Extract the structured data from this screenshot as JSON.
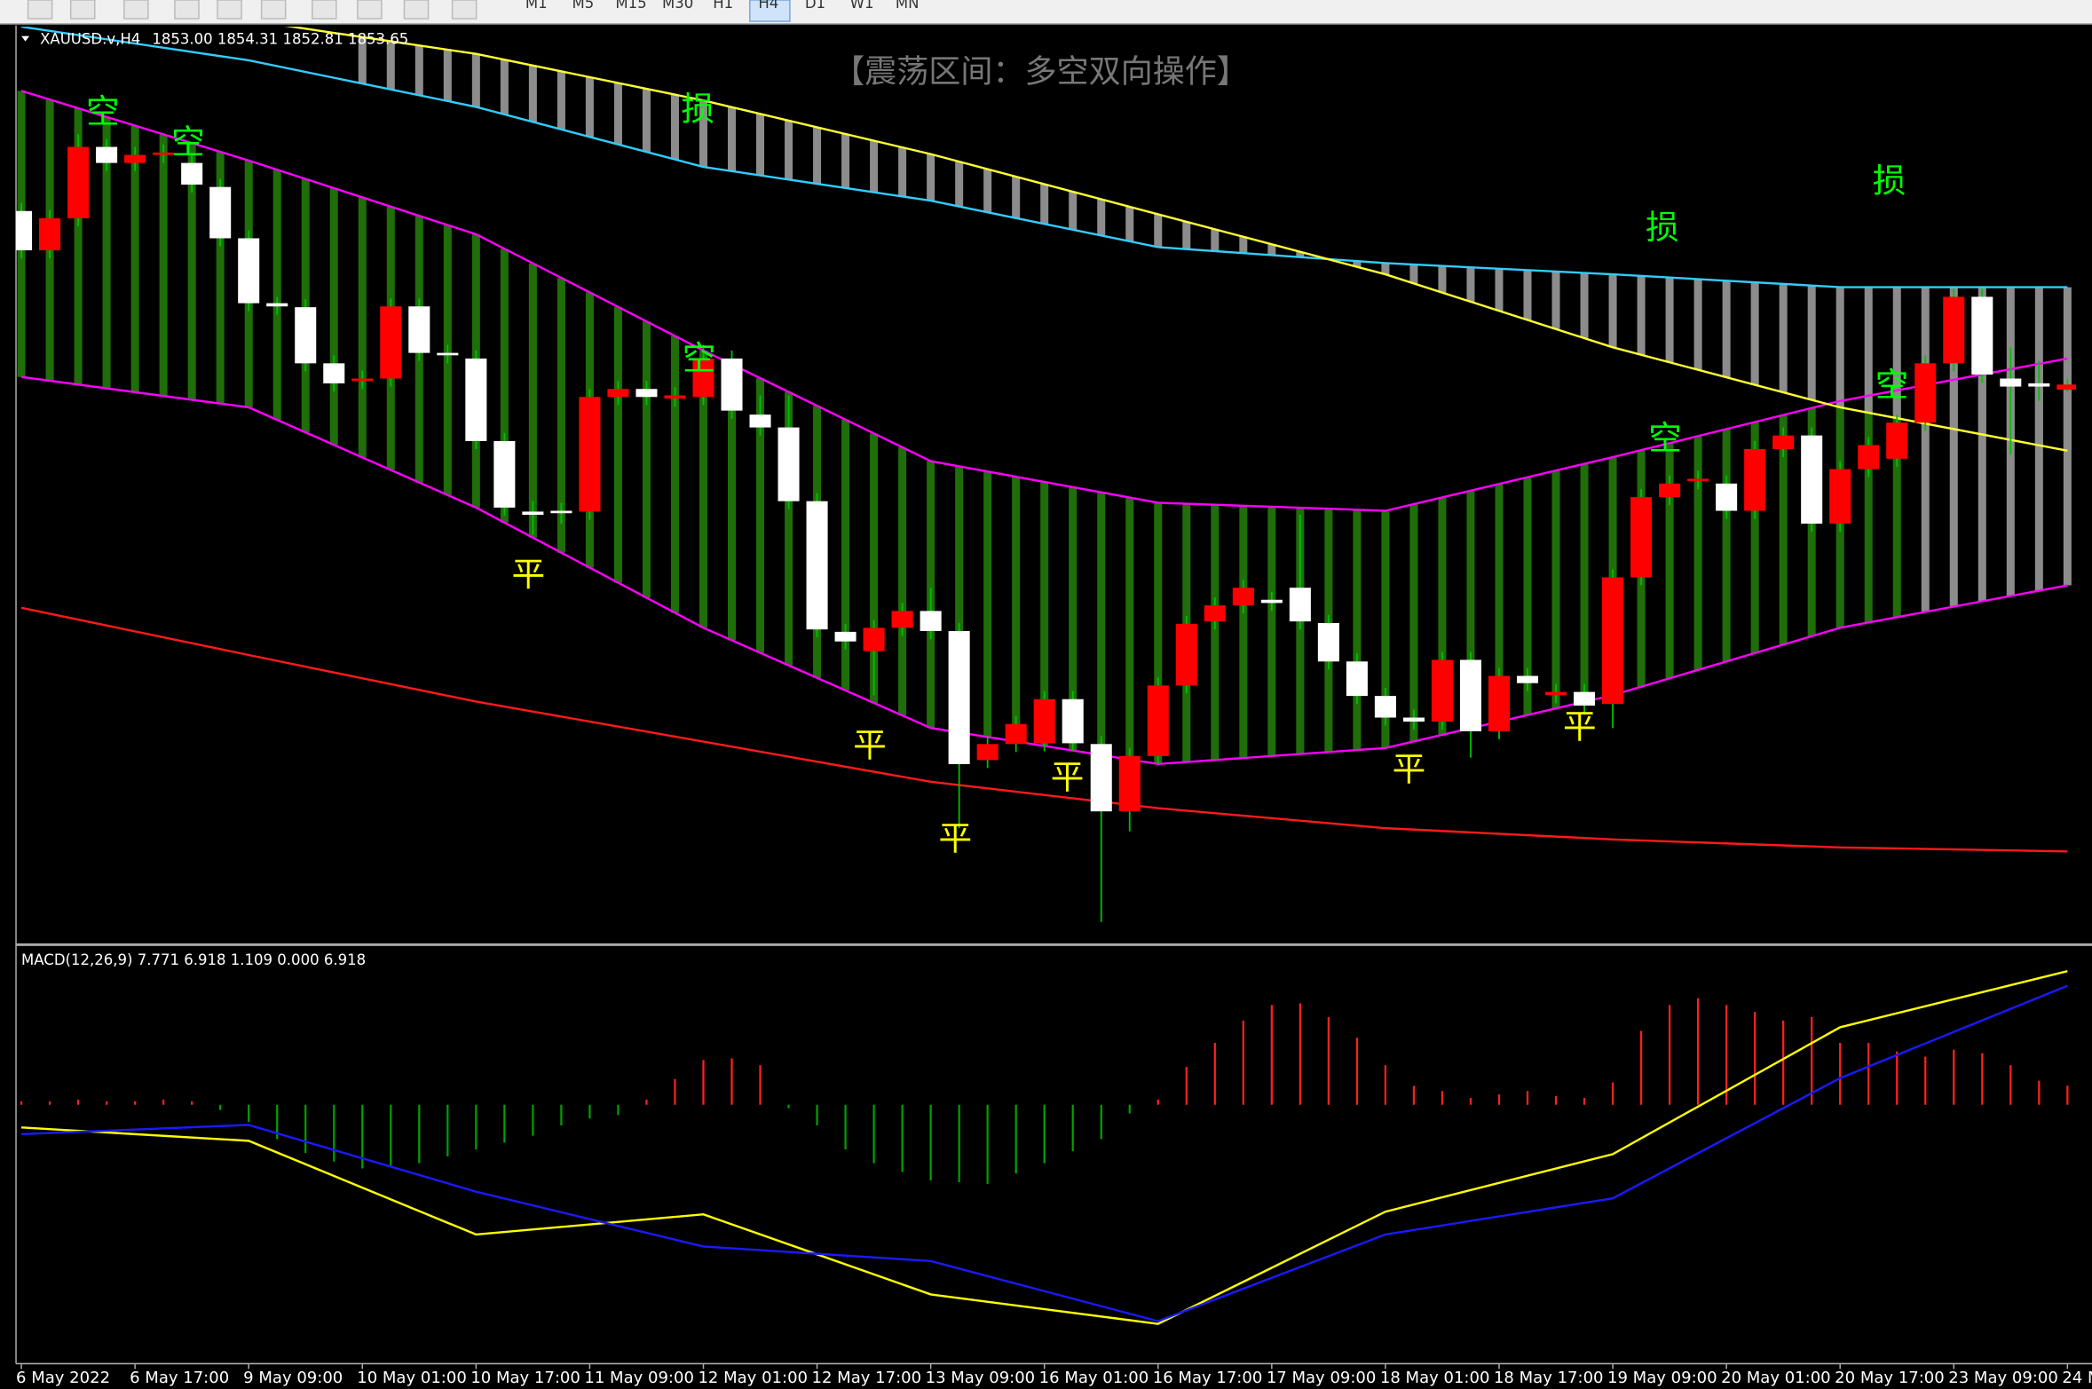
{
  "toolbar": {
    "periods": [
      "M1",
      "M5",
      "M15",
      "M30",
      "H1",
      "H4",
      "D1",
      "W1",
      "MN"
    ],
    "active": "H4"
  },
  "chart_data": [
    {
      "type": "candlestick",
      "title": "XAUUSD.v,H4",
      "subtitle": "1853.00 1854.31 1852.81 1853.65",
      "annotation_title": "【震荡区间：多空双向操作】",
      "categories": [
        "6 May 2022",
        null,
        null,
        null,
        "6 May 17:00",
        null,
        null,
        null,
        "9 May 09:00",
        null,
        null,
        null,
        "10 May 01:00",
        null,
        null,
        null,
        "10 May 17:00",
        null,
        null,
        null,
        "11 May 09:00",
        null,
        null,
        null,
        "12 May 01:00",
        null,
        null,
        null,
        "12 May 17:00",
        null,
        null,
        null,
        "13 May 09:00",
        null,
        null,
        null,
        "16 May 01:00",
        null,
        null,
        null,
        "16 May 17:00",
        null,
        null,
        null,
        "17 May 09:00",
        null,
        null,
        null,
        "18 May 01:00",
        null,
        null,
        null,
        "18 May 17:00",
        null,
        null,
        null,
        "19 May 09:00",
        null,
        null,
        null,
        "20 May 01:00",
        null,
        null,
        null,
        "20 May 17:00",
        null,
        null,
        null,
        "23 May 09:00",
        null,
        null,
        null,
        "24 M"
      ],
      "open": [
        1875.3,
        1870.4,
        1874.4,
        1883.3,
        1881.3,
        1882.3,
        1881.3,
        1878.3,
        1871.9,
        1863.8,
        1863.3,
        1856.3,
        1854.1,
        1854.4,
        1863.4,
        1857.6,
        1856.9,
        1846.6,
        1837.8,
        1837.9,
        1837.8,
        1852.1,
        1853.1,
        1851.9,
        1852.1,
        1856.9,
        1849.9,
        1848.3,
        1839.1,
        1822.8,
        1820.4,
        1823.3,
        1825.4,
        1822.9,
        1806.8,
        1808.8,
        1808.9,
        1814.4,
        1808.8,
        1800.4,
        1807.3,
        1816.1,
        1824.1,
        1826.1,
        1826.8,
        1828.3,
        1823.9,
        1819.1,
        1814.8,
        1812.1,
        1811.6,
        1819.3,
        1810.4,
        1817.3,
        1814.9,
        1815.3,
        1813.8,
        1829.6,
        1839.6,
        1841.6,
        1841.3,
        1837.9,
        1845.6,
        1847.3,
        1836.3,
        1843.1,
        1844.4,
        1848.9,
        1856.3,
        1864.6,
        1854.4,
        1853.8,
        1853.0
      ],
      "high": [
        1876.3,
        1875.4,
        1884.9,
        1884.3,
        1883.3,
        1883.6,
        1882.3,
        1879.3,
        1872.9,
        1864.6,
        1864.3,
        1857.3,
        1855.4,
        1864.4,
        1864.4,
        1858.6,
        1857.9,
        1847.6,
        1839.1,
        1838.9,
        1853.1,
        1854.1,
        1854.1,
        1853.3,
        1858.6,
        1857.9,
        1852.3,
        1852.3,
        1840.1,
        1823.8,
        1824.3,
        1826.4,
        1828.3,
        1823.9,
        1809.8,
        1812.3,
        1815.4,
        1815.4,
        1809.8,
        1808.3,
        1817.1,
        1824.8,
        1827.1,
        1829.3,
        1827.8,
        1837.4,
        1824.9,
        1820.1,
        1815.8,
        1813.1,
        1820.3,
        1820.3,
        1818.3,
        1818.3,
        1816.3,
        1816.3,
        1830.6,
        1840.6,
        1842.3,
        1842.9,
        1842.3,
        1846.6,
        1848.3,
        1848.3,
        1844.1,
        1847.1,
        1849.9,
        1857.3,
        1865.6,
        1865.6,
        1858.3,
        1856.6,
        1854.31
      ],
      "low": [
        1869.4,
        1869.4,
        1873.4,
        1880.3,
        1880.3,
        1881.3,
        1877.6,
        1870.9,
        1862.8,
        1862.4,
        1855.3,
        1852.8,
        1853.1,
        1853.4,
        1856.6,
        1856.3,
        1845.6,
        1837.3,
        1834.9,
        1836.3,
        1836.8,
        1851.1,
        1851.1,
        1850.9,
        1851.1,
        1849.4,
        1847.3,
        1838.1,
        1822.1,
        1820.6,
        1814.9,
        1822.3,
        1821.9,
        1798.3,
        1805.8,
        1807.8,
        1807.9,
        1807.9,
        1786.6,
        1797.9,
        1806.3,
        1815.1,
        1823.1,
        1825.1,
        1825.4,
        1823.1,
        1818.1,
        1813.8,
        1811.1,
        1810.6,
        1810.6,
        1807.1,
        1809.4,
        1815.4,
        1813.9,
        1812.6,
        1810.8,
        1828.6,
        1838.6,
        1840.6,
        1836.9,
        1836.9,
        1844.6,
        1835.3,
        1835.3,
        1842.1,
        1843.4,
        1847.9,
        1855.3,
        1853.9,
        1844.9,
        1851.6,
        1852.81
      ],
      "close": [
        1870.4,
        1874.4,
        1883.3,
        1881.3,
        1882.3,
        1882.6,
        1878.6,
        1871.9,
        1863.8,
        1863.4,
        1856.3,
        1853.8,
        1854.4,
        1863.4,
        1857.6,
        1857.3,
        1846.6,
        1838.3,
        1837.4,
        1837.6,
        1852.1,
        1853.1,
        1852.1,
        1852.3,
        1856.9,
        1850.4,
        1848.3,
        1839.1,
        1823.1,
        1821.6,
        1823.3,
        1825.4,
        1822.9,
        1806.3,
        1808.8,
        1811.3,
        1814.4,
        1808.9,
        1800.4,
        1807.3,
        1816.1,
        1823.8,
        1826.1,
        1828.3,
        1826.4,
        1824.1,
        1819.1,
        1814.8,
        1812.1,
        1811.6,
        1819.3,
        1810.4,
        1817.3,
        1816.4,
        1815.3,
        1813.6,
        1829.6,
        1839.6,
        1841.3,
        1841.9,
        1837.9,
        1845.6,
        1847.3,
        1836.3,
        1843.1,
        1846.1,
        1848.9,
        1856.3,
        1864.6,
        1854.9,
        1853.4,
        1853.4,
        1853.65
      ],
      "up_color": "#ff0000",
      "down_color": "#ffffff",
      "wick_color": "#00c000",
      "stripe_colors": [
        "#1f6e0a",
        "#8c8c8c"
      ],
      "ylim": [
        1784.1,
        1898.3
      ],
      "series": [
        {
          "color": "#ff00ff",
          "x": [
            0,
            8,
            16,
            24,
            32,
            40,
            48,
            56,
            64,
            72
          ],
          "values": [
            1890.3,
            1881.6,
            1872.4,
            1857.9,
            1844.1,
            1838.9,
            1837.9,
            1844.6,
            1851.6,
            1856.9
          ]
        },
        {
          "color": "#ff00ff",
          "x": [
            0,
            8,
            16,
            24,
            32,
            40,
            48,
            56,
            64,
            72
          ],
          "values": [
            1854.6,
            1850.8,
            1838.3,
            1823.3,
            1810.8,
            1806.3,
            1808.3,
            1814.9,
            1823.3,
            1828.6
          ]
        },
        {
          "color": "#33ccff",
          "x": [
            0,
            8,
            16,
            24,
            32,
            40,
            48,
            56,
            64,
            72
          ],
          "values": [
            1898.3,
            1894.1,
            1888.3,
            1880.8,
            1876.6,
            1870.8,
            1868.8,
            1867.4,
            1865.8,
            1865.8
          ]
        },
        {
          "color": "#ffff33",
          "x": [
            8,
            16,
            24,
            32,
            40,
            48,
            56,
            64,
            72
          ],
          "values": [
            1899.1,
            1894.9,
            1889.1,
            1882.4,
            1874.9,
            1867.4,
            1858.3,
            1850.8,
            1845.4
          ]
        },
        {
          "color": "#ff1a1a",
          "x": [
            0,
            8,
            16,
            24,
            32,
            40,
            48,
            56,
            64,
            72
          ],
          "values": [
            1825.8,
            1819.9,
            1814.1,
            1809.1,
            1804.1,
            1800.8,
            1798.3,
            1796.9,
            1795.9,
            1795.4
          ]
        }
      ],
      "annotations": [
        {
          "text": "空",
          "color": "#00ff00"
        },
        {
          "text": "空",
          "color": "#00ff00"
        },
        {
          "text": "平",
          "color": "#ffff00"
        },
        {
          "text": "损",
          "color": "#00ff00"
        },
        {
          "text": "空",
          "color": "#00ff00"
        },
        {
          "text": "平",
          "color": "#ffff00"
        },
        {
          "text": "平",
          "color": "#ffff00"
        },
        {
          "text": "平",
          "color": "#ffff00"
        },
        {
          "text": "平",
          "color": "#ffff00"
        },
        {
          "text": "平",
          "color": "#ffff00"
        },
        {
          "text": "损",
          "color": "#00ff00"
        },
        {
          "text": "空",
          "color": "#00ff00"
        },
        {
          "text": "损",
          "color": "#00ff00"
        },
        {
          "text": "空",
          "color": "#00ff00"
        }
      ]
    },
    {
      "type": "macd",
      "title": "MACD(12,26,9) 7.771 6.918 1.109 0.000 6.918",
      "ylim": [
        -14.9,
        9.0
      ],
      "pos_color": "#ff2020",
      "neg_color": "#00a000",
      "histogram": [
        0.2,
        0.2,
        0.3,
        0.2,
        0.2,
        0.3,
        0.2,
        -0.3,
        -1.0,
        -2.0,
        -2.8,
        -3.3,
        -3.7,
        -3.6,
        -3.4,
        -3.0,
        -2.6,
        -2.2,
        -1.8,
        -1.2,
        -0.8,
        -0.6,
        0.3,
        1.5,
        2.6,
        2.7,
        2.3,
        -0.2,
        -1.2,
        -2.6,
        -3.4,
        -3.9,
        -4.4,
        -4.5,
        -4.6,
        -4.0,
        -3.4,
        -2.7,
        -2.0,
        -0.5,
        0.3,
        2.2,
        3.6,
        4.9,
        5.8,
        5.9,
        5.1,
        3.9,
        2.3,
        1.1,
        0.8,
        0.4,
        0.6,
        0.8,
        0.5,
        0.4,
        1.3,
        4.3,
        5.8,
        6.2,
        5.8,
        5.4,
        4.9,
        5.1,
        3.6,
        3.6,
        3.1,
        2.8,
        3.2,
        3.0,
        2.3,
        1.4,
        1.109
      ],
      "series": [
        {
          "color": "#ffff00",
          "x": [
            0,
            8,
            16,
            24,
            32,
            40,
            48,
            56,
            64,
            72
          ],
          "values": [
            -1.32,
            -2.1,
            -7.54,
            -6.37,
            -11.03,
            -12.74,
            -6.22,
            -2.87,
            4.51,
            7.771
          ]
        },
        {
          "color": "#1a1aff",
          "x": [
            0,
            8,
            16,
            24,
            32,
            40,
            48,
            56,
            64,
            72
          ],
          "values": [
            -1.71,
            -1.17,
            -5.05,
            -8.24,
            -9.09,
            -12.59,
            -7.54,
            -5.44,
            1.55,
            6.918
          ]
        }
      ]
    }
  ]
}
